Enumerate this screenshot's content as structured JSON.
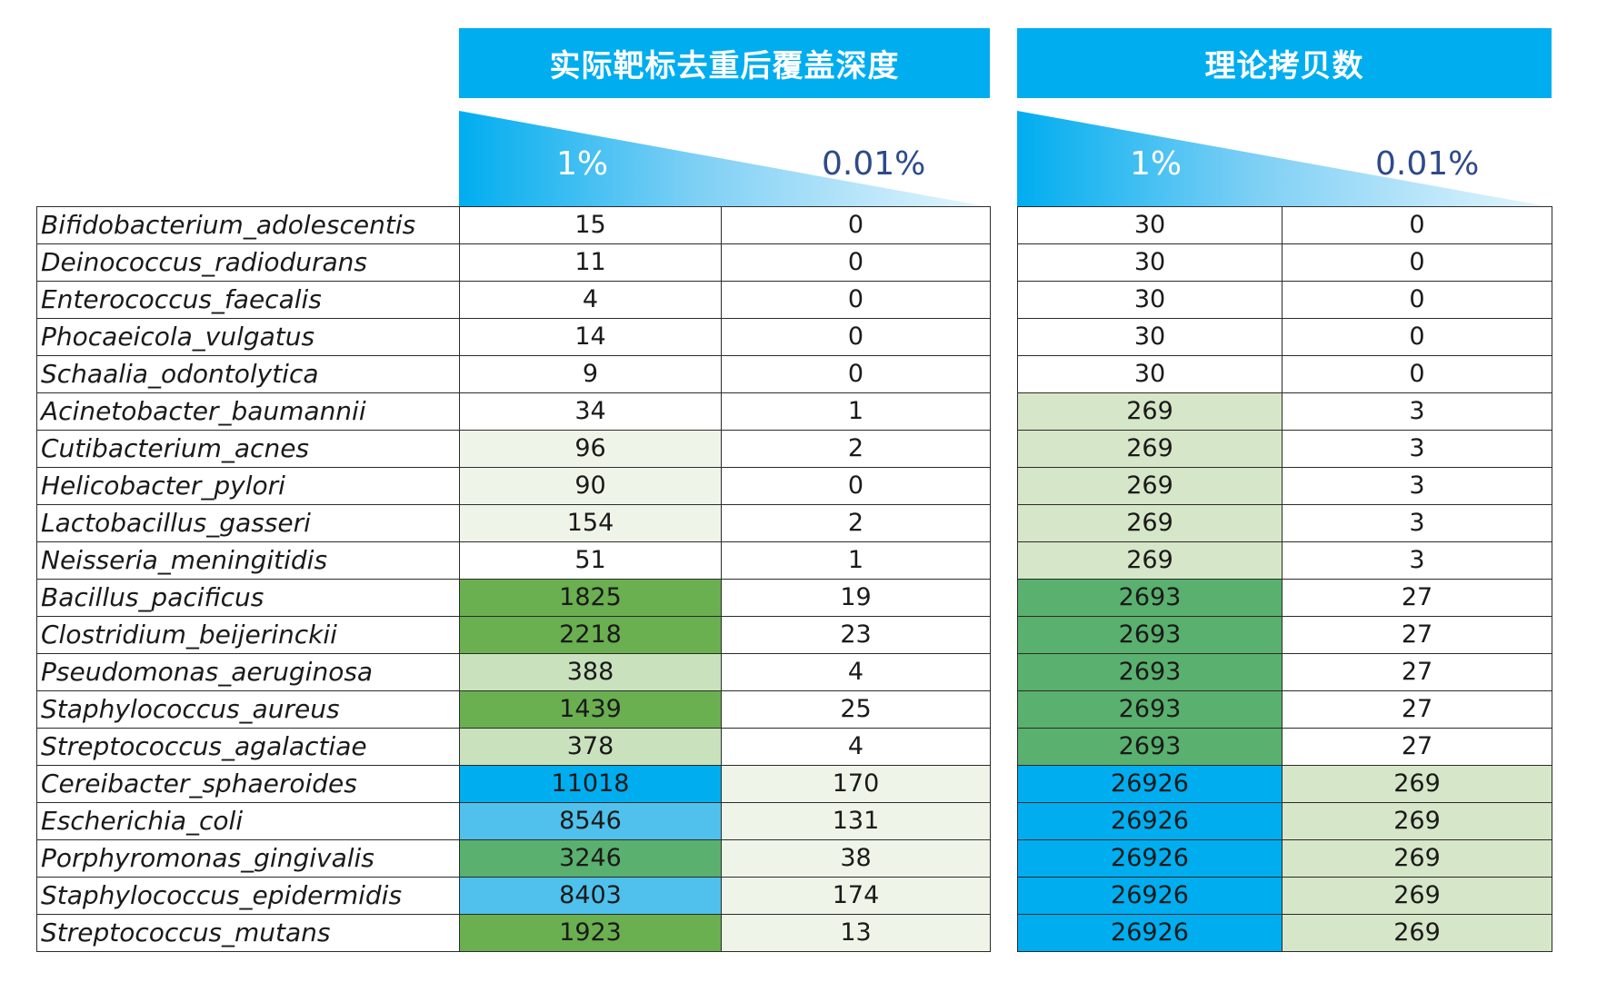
{
  "chart_data": {
    "type": "table",
    "groups": [
      {
        "title": "实际靶标去重后覆盖深度",
        "columns": [
          "1%",
          "0.01%"
        ]
      },
      {
        "title": "理论拷贝数",
        "columns": [
          "1%",
          "0.01%"
        ]
      }
    ],
    "rows": [
      {
        "name": "Bifidobacterium_adolescentis",
        "depth_1": "15",
        "depth_001": "0",
        "copy_1": "30",
        "copy_001": "0"
      },
      {
        "name": "Deinococcus_radiodurans",
        "depth_1": "11",
        "depth_001": "0",
        "copy_1": "30",
        "copy_001": "0"
      },
      {
        "name": "Enterococcus_faecalis",
        "depth_1": "4",
        "depth_001": "0",
        "copy_1": "30",
        "copy_001": "0"
      },
      {
        "name": "Phocaeicola_vulgatus",
        "depth_1": "14",
        "depth_001": "0",
        "copy_1": "30",
        "copy_001": "0"
      },
      {
        "name": "Schaalia_odontolytica",
        "depth_1": "9",
        "depth_001": "0",
        "copy_1": "30",
        "copy_001": "0"
      },
      {
        "name": "Acinetobacter_baumannii",
        "depth_1": "34",
        "depth_001": "1",
        "copy_1": "269",
        "copy_001": "3"
      },
      {
        "name": "Cutibacterium_acnes",
        "depth_1": "96",
        "depth_001": "2",
        "copy_1": "269",
        "copy_001": "3"
      },
      {
        "name": "Helicobacter_pylori",
        "depth_1": "90",
        "depth_001": "0",
        "copy_1": "269",
        "copy_001": "3"
      },
      {
        "name": "Lactobacillus_gasseri",
        "depth_1": "154",
        "depth_001": "2",
        "copy_1": "269",
        "copy_001": "3"
      },
      {
        "name": "Neisseria_meningitidis",
        "depth_1": "51",
        "depth_001": "1",
        "copy_1": "269",
        "copy_001": "3"
      },
      {
        "name": "Bacillus_pacificus",
        "depth_1": "1825",
        "depth_001": "19",
        "copy_1": "2693",
        "copy_001": "27"
      },
      {
        "name": "Clostridium_beijerinckii",
        "depth_1": "2218",
        "depth_001": "23",
        "copy_1": "2693",
        "copy_001": "27"
      },
      {
        "name": "Pseudomonas_aeruginosa",
        "depth_1": "388",
        "depth_001": "4",
        "copy_1": "2693",
        "copy_001": "27"
      },
      {
        "name": "Staphylococcus_aureus",
        "depth_1": "1439",
        "depth_001": "25",
        "copy_1": "2693",
        "copy_001": "27"
      },
      {
        "name": "Streptococcus_agalactiae",
        "depth_1": "378",
        "depth_001": "4",
        "copy_1": "2693",
        "copy_001": "27"
      },
      {
        "name": "Cereibacter_sphaeroides",
        "depth_1": "11018",
        "depth_001": "170",
        "copy_1": "26926",
        "copy_001": "269"
      },
      {
        "name": "Escherichia_coli",
        "depth_1": "8546",
        "depth_001": "131",
        "copy_1": "26926",
        "copy_001": "269"
      },
      {
        "name": "Porphyromonas_gingivalis",
        "depth_1": "3246",
        "depth_001": "38",
        "copy_1": "26926",
        "copy_001": "269"
      },
      {
        "name": "Staphylococcus_epidermidis",
        "depth_1": "8403",
        "depth_001": "174",
        "copy_1": "26926",
        "copy_001": "269"
      },
      {
        "name": "Streptococcus_mutans",
        "depth_1": "1923",
        "depth_001": "13",
        "copy_1": "26926",
        "copy_001": "269"
      }
    ]
  },
  "colors": {
    "header": "#00adef",
    "wedge_light": "#bfe6fb",
    "label_dark": "#2e4a8a",
    "cell_white": "#ffffff",
    "cell_pale_green": "#eef5e8",
    "cell_light_green": "#c9e2bd",
    "cell_sage": "#d6e6c8",
    "cell_green": "#6aaf50",
    "cell_teal_green": "#5ab06e",
    "cell_sky": "#4fc1ec",
    "cell_blue": "#00adef"
  }
}
